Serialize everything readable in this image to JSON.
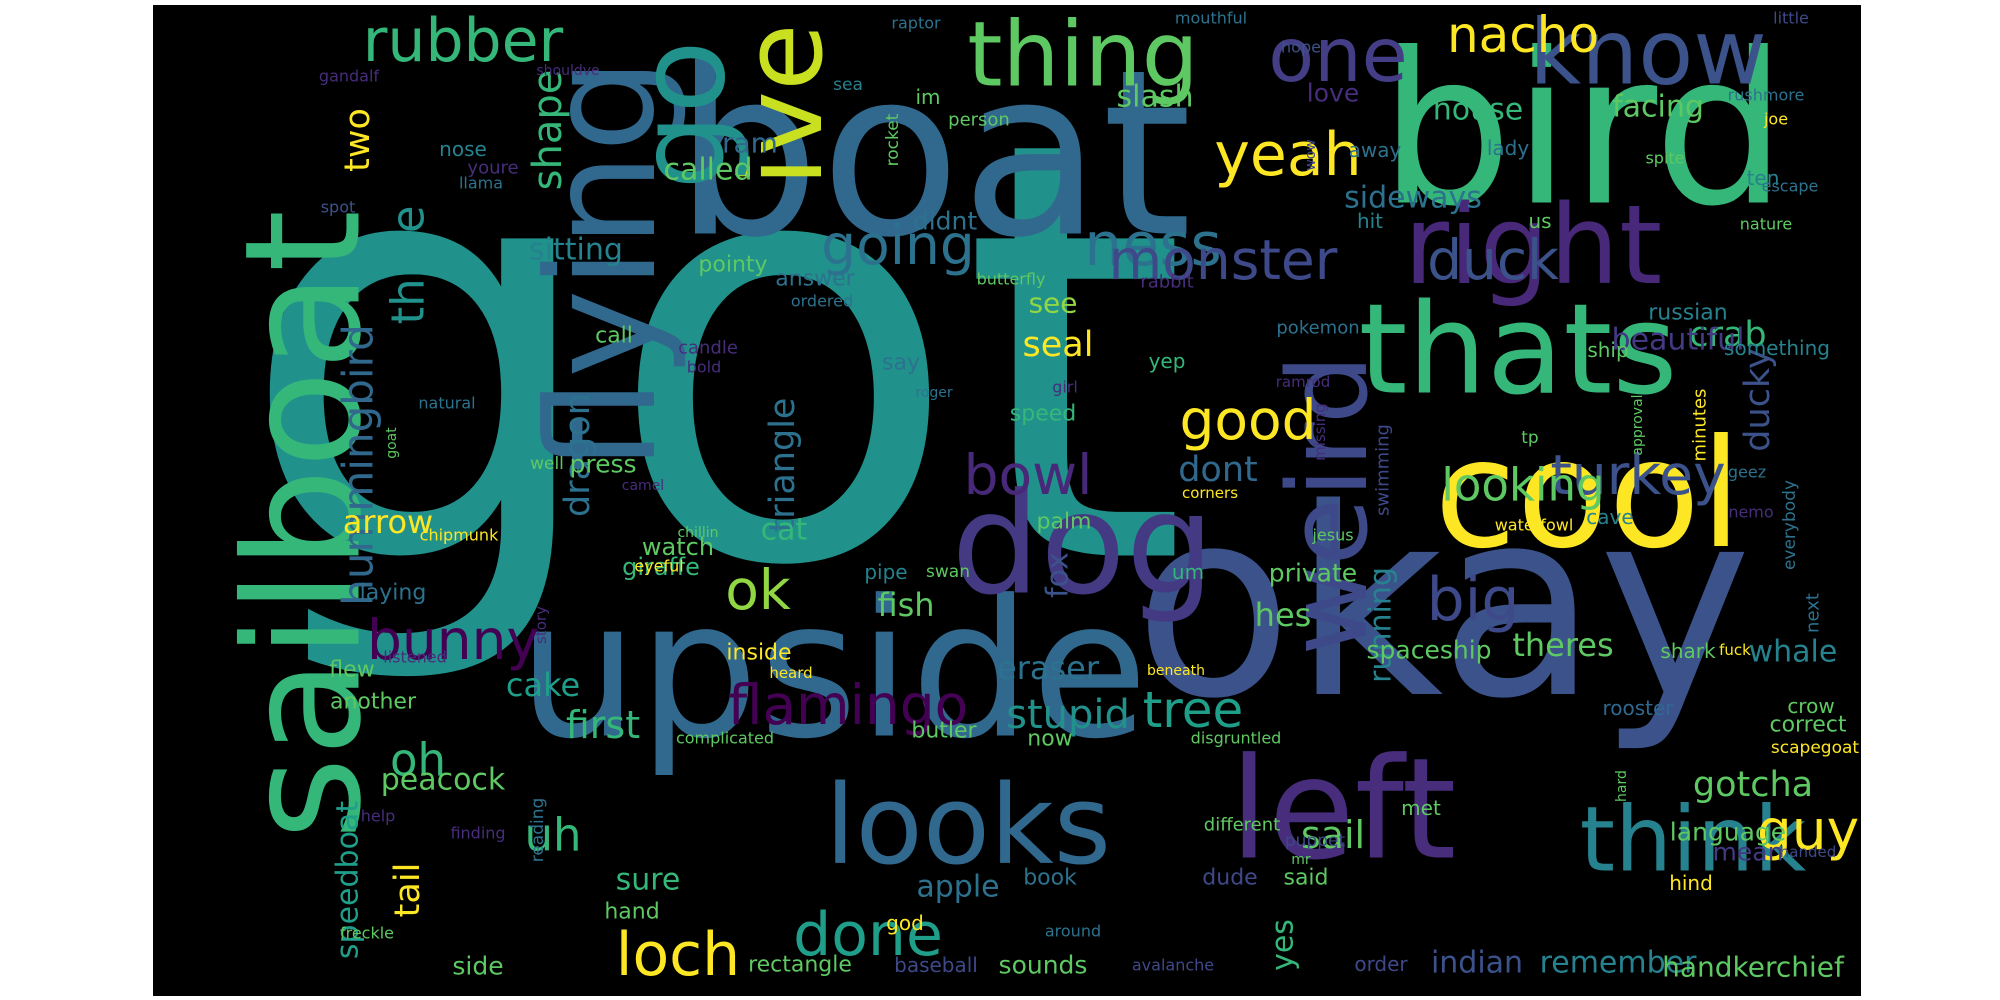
{
  "palette": [
    "#440154",
    "#3b528b",
    "#21918c",
    "#5ec962",
    "#fde725"
  ],
  "words": [
    {
      "text": "got",
      "color": "#21918c"
    },
    {
      "text": "boat",
      "color": "#31688e"
    },
    {
      "text": "okay",
      "color": "#3b528b"
    },
    {
      "text": "bird",
      "color": "#35b779"
    },
    {
      "text": "upside",
      "color": "#31688e"
    },
    {
      "text": "sailboat",
      "color": "#35b779"
    },
    {
      "text": "flying",
      "color": "#31688e"
    },
    {
      "text": "cool",
      "color": "#fde725"
    },
    {
      "text": "thats",
      "color": "#35b779"
    },
    {
      "text": "left",
      "color": "#472d7b"
    },
    {
      "text": "dog",
      "color": "#443983"
    },
    {
      "text": "looks",
      "color": "#31688e"
    },
    {
      "text": "think",
      "color": "#26828e"
    },
    {
      "text": "right",
      "color": "#482878"
    },
    {
      "text": "know",
      "color": "#3b528b"
    },
    {
      "text": "one",
      "color": "#433e85"
    },
    {
      "text": "thing",
      "color": "#5ec962"
    },
    {
      "text": "ive",
      "color": "#c8e020"
    },
    {
      "text": "go",
      "color": "#21918c"
    },
    {
      "text": "weird",
      "color": "#3e4989"
    },
    {
      "text": "rubber",
      "color": "#35b779"
    },
    {
      "text": "nacho",
      "color": "#fde725"
    },
    {
      "text": "yeah",
      "color": "#fde725"
    },
    {
      "text": "ness",
      "color": "#2c728e"
    },
    {
      "text": "going",
      "color": "#2c728e"
    },
    {
      "text": "monster",
      "color": "#3e4989"
    },
    {
      "text": "duck",
      "color": "#3b528b"
    },
    {
      "text": "good",
      "color": "#fde725"
    },
    {
      "text": "turkey",
      "color": "#3b528b"
    },
    {
      "text": "looking",
      "color": "#5ec962"
    },
    {
      "text": "bowl",
      "color": "#482878"
    },
    {
      "text": "ok",
      "color": "#90d743"
    },
    {
      "text": "big",
      "color": "#3e4989"
    },
    {
      "text": "flamingo",
      "color": "#440154"
    },
    {
      "text": "tree",
      "color": "#1f9e89"
    },
    {
      "text": "done",
      "color": "#1f9e89"
    },
    {
      "text": "loch",
      "color": "#fde725"
    },
    {
      "text": "guy",
      "color": "#fde725"
    },
    {
      "text": "bunny",
      "color": "#440154"
    },
    {
      "text": "hummingbird",
      "color": "#31688e"
    },
    {
      "text": "three",
      "color": "#21918c"
    },
    {
      "text": "two",
      "color": "#fde725"
    },
    {
      "text": "shape",
      "color": "#35b779"
    },
    {
      "text": "triangle",
      "color": "#2c728e"
    },
    {
      "text": "dragon",
      "color": "#2c728e"
    },
    {
      "text": "speedboat",
      "color": "#1f9e89"
    },
    {
      "text": "tail",
      "color": "#fde725"
    },
    {
      "text": "oh",
      "color": "#35b779"
    },
    {
      "text": "uh",
      "color": "#35b779"
    },
    {
      "text": "ducky",
      "color": "#3b528b"
    },
    {
      "text": "crab",
      "color": "#35b779"
    },
    {
      "text": "beautiful",
      "color": "#443983"
    },
    {
      "text": "seal",
      "color": "#fde725"
    },
    {
      "text": "sail",
      "color": "#5ec962"
    },
    {
      "text": "gotcha",
      "color": "#5ec962"
    },
    {
      "text": "stupid",
      "color": "#21918c"
    },
    {
      "text": "whale",
      "color": "#26828e"
    },
    {
      "text": "dont",
      "color": "#31688e"
    },
    {
      "text": "cake",
      "color": "#1f9e89"
    },
    {
      "text": "first",
      "color": "#35b779"
    },
    {
      "text": "theres",
      "color": "#5ec962"
    },
    {
      "text": "hes",
      "color": "#5ec962"
    },
    {
      "text": "fish",
      "color": "#5ec962"
    },
    {
      "text": "eraser",
      "color": "#2c728e"
    },
    {
      "text": "apple",
      "color": "#2c728e"
    },
    {
      "text": "sure",
      "color": "#35b779"
    },
    {
      "text": "indian",
      "color": "#3b528b"
    },
    {
      "text": "remember",
      "color": "#26828e"
    },
    {
      "text": "handkerchief",
      "color": "#5ec962"
    },
    {
      "text": "language",
      "color": "#5ec962"
    },
    {
      "text": "mean",
      "color": "#443983"
    },
    {
      "text": "called",
      "color": "#5ec962"
    },
    {
      "text": "sitting",
      "color": "#26828e"
    },
    {
      "text": "slash",
      "color": "#5ec962"
    },
    {
      "text": "house",
      "color": "#35b779"
    },
    {
      "text": "facing",
      "color": "#5ec962"
    },
    {
      "text": "sideways",
      "color": "#2c728e"
    },
    {
      "text": "arrow",
      "color": "#fde725"
    },
    {
      "text": "peacock",
      "color": "#5ec962"
    },
    {
      "text": "running",
      "color": "#26828e"
    },
    {
      "text": "cat",
      "color": "#35b779"
    },
    {
      "text": "fox",
      "color": "#3b528b"
    },
    {
      "text": "yes",
      "color": "#35b779"
    },
    {
      "text": "ram",
      "color": "#31688e"
    },
    {
      "text": "love",
      "color": "#472d7b"
    },
    {
      "text": "see",
      "color": "#90d743"
    },
    {
      "text": "russian",
      "color": "#26828e"
    },
    {
      "text": "pointy",
      "color": "#5ec962"
    },
    {
      "text": "didnt",
      "color": "#2c728e"
    },
    {
      "text": "private",
      "color": "#5ec962"
    },
    {
      "text": "laying",
      "color": "#2c728e"
    },
    {
      "text": "press",
      "color": "#5ec962"
    },
    {
      "text": "giraffe",
      "color": "#35b779"
    },
    {
      "text": "watch",
      "color": "#5ec962"
    },
    {
      "text": "pipe",
      "color": "#26828e"
    },
    {
      "text": "swan",
      "color": "#5ec962"
    },
    {
      "text": "palm",
      "color": "#5ec962"
    },
    {
      "text": "call",
      "color": "#5ec962"
    },
    {
      "text": "say",
      "color": "#2c728e"
    },
    {
      "text": "answer",
      "color": "#2c728e"
    },
    {
      "text": "spaceship",
      "color": "#5ec962"
    },
    {
      "text": "inside",
      "color": "#fde725"
    },
    {
      "text": "butler",
      "color": "#5ec962"
    },
    {
      "text": "now",
      "color": "#5ec962"
    },
    {
      "text": "flew",
      "color": "#5ec962"
    },
    {
      "text": "another",
      "color": "#5ec962"
    },
    {
      "text": "side",
      "color": "#5ec962"
    },
    {
      "text": "rectangle",
      "color": "#5ec962"
    },
    {
      "text": "sounds",
      "color": "#5ec962"
    },
    {
      "text": "baseball",
      "color": "#3e4989"
    },
    {
      "text": "book",
      "color": "#2c728e"
    },
    {
      "text": "dude",
      "color": "#3e4989"
    },
    {
      "text": "said",
      "color": "#5ec962"
    },
    {
      "text": "god",
      "color": "#fde725"
    },
    {
      "text": "hand",
      "color": "#5ec962"
    },
    {
      "text": "hind",
      "color": "#fde725"
    },
    {
      "text": "order",
      "color": "#3e4989"
    },
    {
      "text": "crow",
      "color": "#5ec962"
    },
    {
      "text": "correct",
      "color": "#5ec962"
    },
    {
      "text": "shark",
      "color": "#5ec962"
    },
    {
      "text": "rooster",
      "color": "#31688e"
    },
    {
      "text": "cave",
      "color": "#26828e"
    },
    {
      "text": "something",
      "color": "#26828e"
    },
    {
      "text": "ship",
      "color": "#5ec962"
    },
    {
      "text": "yep",
      "color": "#35b779"
    },
    {
      "text": "us",
      "color": "#5ec962"
    },
    {
      "text": "hit",
      "color": "#26828e"
    },
    {
      "text": "ten",
      "color": "#26828e"
    },
    {
      "text": "lady",
      "color": "#2c728e"
    },
    {
      "text": "away",
      "color": "#2c728e"
    },
    {
      "text": "im",
      "color": "#5ec962"
    },
    {
      "text": "person",
      "color": "#5ec962"
    },
    {
      "text": "sea",
      "color": "#26828e"
    },
    {
      "text": "nose",
      "color": "#26828e"
    },
    {
      "text": "youre",
      "color": "#472d7b"
    },
    {
      "text": "llama",
      "color": "#2c728e"
    },
    {
      "text": "spot",
      "color": "#3b528b"
    },
    {
      "text": "raptor",
      "color": "#2c728e"
    },
    {
      "text": "mouthful",
      "color": "#2c728e"
    },
    {
      "text": "little",
      "color": "#3e4989"
    },
    {
      "text": "hope",
      "color": "#3b528b"
    },
    {
      "text": "rushmore",
      "color": "#2c728e"
    },
    {
      "text": "joe",
      "color": "#fde725"
    },
    {
      "text": "spite",
      "color": "#5ec962"
    },
    {
      "text": "escape",
      "color": "#2c728e"
    },
    {
      "text": "nature",
      "color": "#5ec962"
    },
    {
      "text": "wow",
      "color": "#3e4989"
    },
    {
      "text": "rocket",
      "color": "#5ec962"
    },
    {
      "text": "gandalf",
      "color": "#472d7b"
    },
    {
      "text": "shouldve",
      "color": "#472d7b"
    },
    {
      "text": "butterfly",
      "color": "#5ec962"
    },
    {
      "text": "ordered",
      "color": "#2c728e"
    },
    {
      "text": "rabbit",
      "color": "#472d7b"
    },
    {
      "text": "pokemon",
      "color": "#2c728e"
    },
    {
      "text": "candle",
      "color": "#472d7b"
    },
    {
      "text": "bold",
      "color": "#472d7b"
    },
    {
      "text": "girl",
      "color": "#472d7b"
    },
    {
      "text": "roger",
      "color": "#2c728e"
    },
    {
      "text": "natural",
      "color": "#2c728e"
    },
    {
      "text": "goat",
      "color": "#5ec962"
    },
    {
      "text": "well",
      "color": "#5ec962"
    },
    {
      "text": "camel",
      "color": "#472d7b"
    },
    {
      "text": "chipmunk",
      "color": "#fde725"
    },
    {
      "text": "story",
      "color": "#472d7b"
    },
    {
      "text": "eyeful",
      "color": "#fde725"
    },
    {
      "text": "chillin",
      "color": "#5ec962"
    },
    {
      "text": "listened",
      "color": "#472d7b"
    },
    {
      "text": "heard",
      "color": "#fde725"
    },
    {
      "text": "complicated",
      "color": "#5ec962"
    },
    {
      "text": "disgruntled",
      "color": "#5ec962"
    },
    {
      "text": "beneath",
      "color": "#fde725"
    },
    {
      "text": "jesus",
      "color": "#5ec962"
    },
    {
      "text": "corners",
      "color": "#fde725"
    },
    {
      "text": "um",
      "color": "#35b779"
    },
    {
      "text": "different",
      "color": "#5ec962"
    },
    {
      "text": "puppet",
      "color": "#3e4989"
    },
    {
      "text": "speed",
      "color": "#35b779"
    },
    {
      "text": "around",
      "color": "#2c728e"
    },
    {
      "text": "reading",
      "color": "#2c728e"
    },
    {
      "text": "finding",
      "color": "#472d7b"
    },
    {
      "text": "help",
      "color": "#472d7b"
    },
    {
      "text": "freckle",
      "color": "#5ec962"
    },
    {
      "text": "avalanche",
      "color": "#3e4989"
    },
    {
      "text": "swimming",
      "color": "#3e4989"
    },
    {
      "text": "missing",
      "color": "#472d7b"
    },
    {
      "text": "ramrod",
      "color": "#472d7b"
    },
    {
      "text": "tp",
      "color": "#5ec962"
    },
    {
      "text": "approval",
      "color": "#5ec962"
    },
    {
      "text": "minutes",
      "color": "#fde725"
    },
    {
      "text": "geez",
      "color": "#2c728e"
    },
    {
      "text": "everybody",
      "color": "#2c728e"
    },
    {
      "text": "nemo",
      "color": "#472d7b"
    },
    {
      "text": "waterfowl",
      "color": "#fde725"
    },
    {
      "text": "met",
      "color": "#5ec962"
    },
    {
      "text": "mr",
      "color": "#5ec962"
    },
    {
      "text": "handed",
      "color": "#3e4989"
    },
    {
      "text": "hard",
      "color": "#5ec962"
    },
    {
      "text": "fuck",
      "color": "#fde725"
    },
    {
      "text": "next",
      "color": "#2c728e"
    },
    {
      "text": "scapegoat",
      "color": "#fde725"
    }
  ]
}
